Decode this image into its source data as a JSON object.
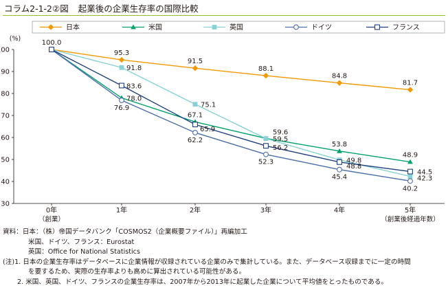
{
  "header": {
    "label": "コラム2-1-2②図",
    "title": "起業後の企業生存率の国際比較"
  },
  "chart_data": {
    "type": "line",
    "categories": [
      "0年",
      "1年",
      "2年",
      "3年",
      "4年",
      "5年"
    ],
    "category_sublabels": [
      "（創業）",
      "",
      "",
      "",
      "",
      "（創業後経過年数）"
    ],
    "ylabel": "(%)",
    "ylim": [
      30,
      100
    ],
    "yticks": [
      30,
      40,
      50,
      60,
      70,
      80,
      90,
      100
    ],
    "grid": false,
    "legend_position": "top",
    "series": [
      {
        "name": "日本",
        "color": "#f39800",
        "marker": "diamond",
        "values": [
          100.0,
          95.3,
          91.5,
          88.1,
          84.8,
          81.7
        ],
        "labels": [
          "100.0",
          "95.3",
          "91.5",
          "88.1",
          "84.8",
          "81.7"
        ]
      },
      {
        "name": "米国",
        "color": "#00a26a",
        "marker": "triangle",
        "values": [
          100.0,
          78.0,
          67.1,
          59.6,
          53.8,
          48.9
        ],
        "labels": [
          "",
          "78.0",
          "67.1",
          "59.6",
          "53.8",
          "48.9"
        ]
      },
      {
        "name": "英国",
        "color": "#88d1d4",
        "marker": "square",
        "values": [
          100.0,
          91.8,
          75.1,
          59.5,
          49.8,
          42.3
        ],
        "labels": [
          "",
          "91.8",
          "75.1",
          "59.5",
          "49.8",
          "42.3"
        ]
      },
      {
        "name": "ドイツ",
        "color": "#4b6ea9",
        "marker": "circle-open",
        "values": [
          100.0,
          76.9,
          62.2,
          52.3,
          45.4,
          40.2
        ],
        "labels": [
          "",
          "76.9",
          "62.2",
          "52.3",
          "45.4",
          "40.2"
        ]
      },
      {
        "name": "フランス",
        "color": "#1f3f80",
        "marker": "square-open",
        "values": [
          100.0,
          83.6,
          65.9,
          56.2,
          48.8,
          44.5
        ],
        "labels": [
          "",
          "83.6",
          "65.9",
          "56.2",
          "48.8",
          "44.5"
        ]
      }
    ]
  },
  "notes": {
    "source_1": "資料：日本：（株）帝国データバンク「COSMOS2（企業概要ファイル）」再編加工",
    "source_2": "米国、ドイツ、フランス：Eurostat",
    "source_3": "英国：Office for National Statistics",
    "note_1a": "(注)1. 日本の企業生存率はデータベースに企業情報が収録されている企業のみで集計している。また、データベース収録までに一定の時間",
    "note_1b": "を要するため、実際の生存率よりも高めに算出されている可能性がある。",
    "note_2": "2. 米国、英国、ドイツ、フランスの企業生存率は、2007年から2013年に起業した企業について平均値をとったものである。"
  }
}
